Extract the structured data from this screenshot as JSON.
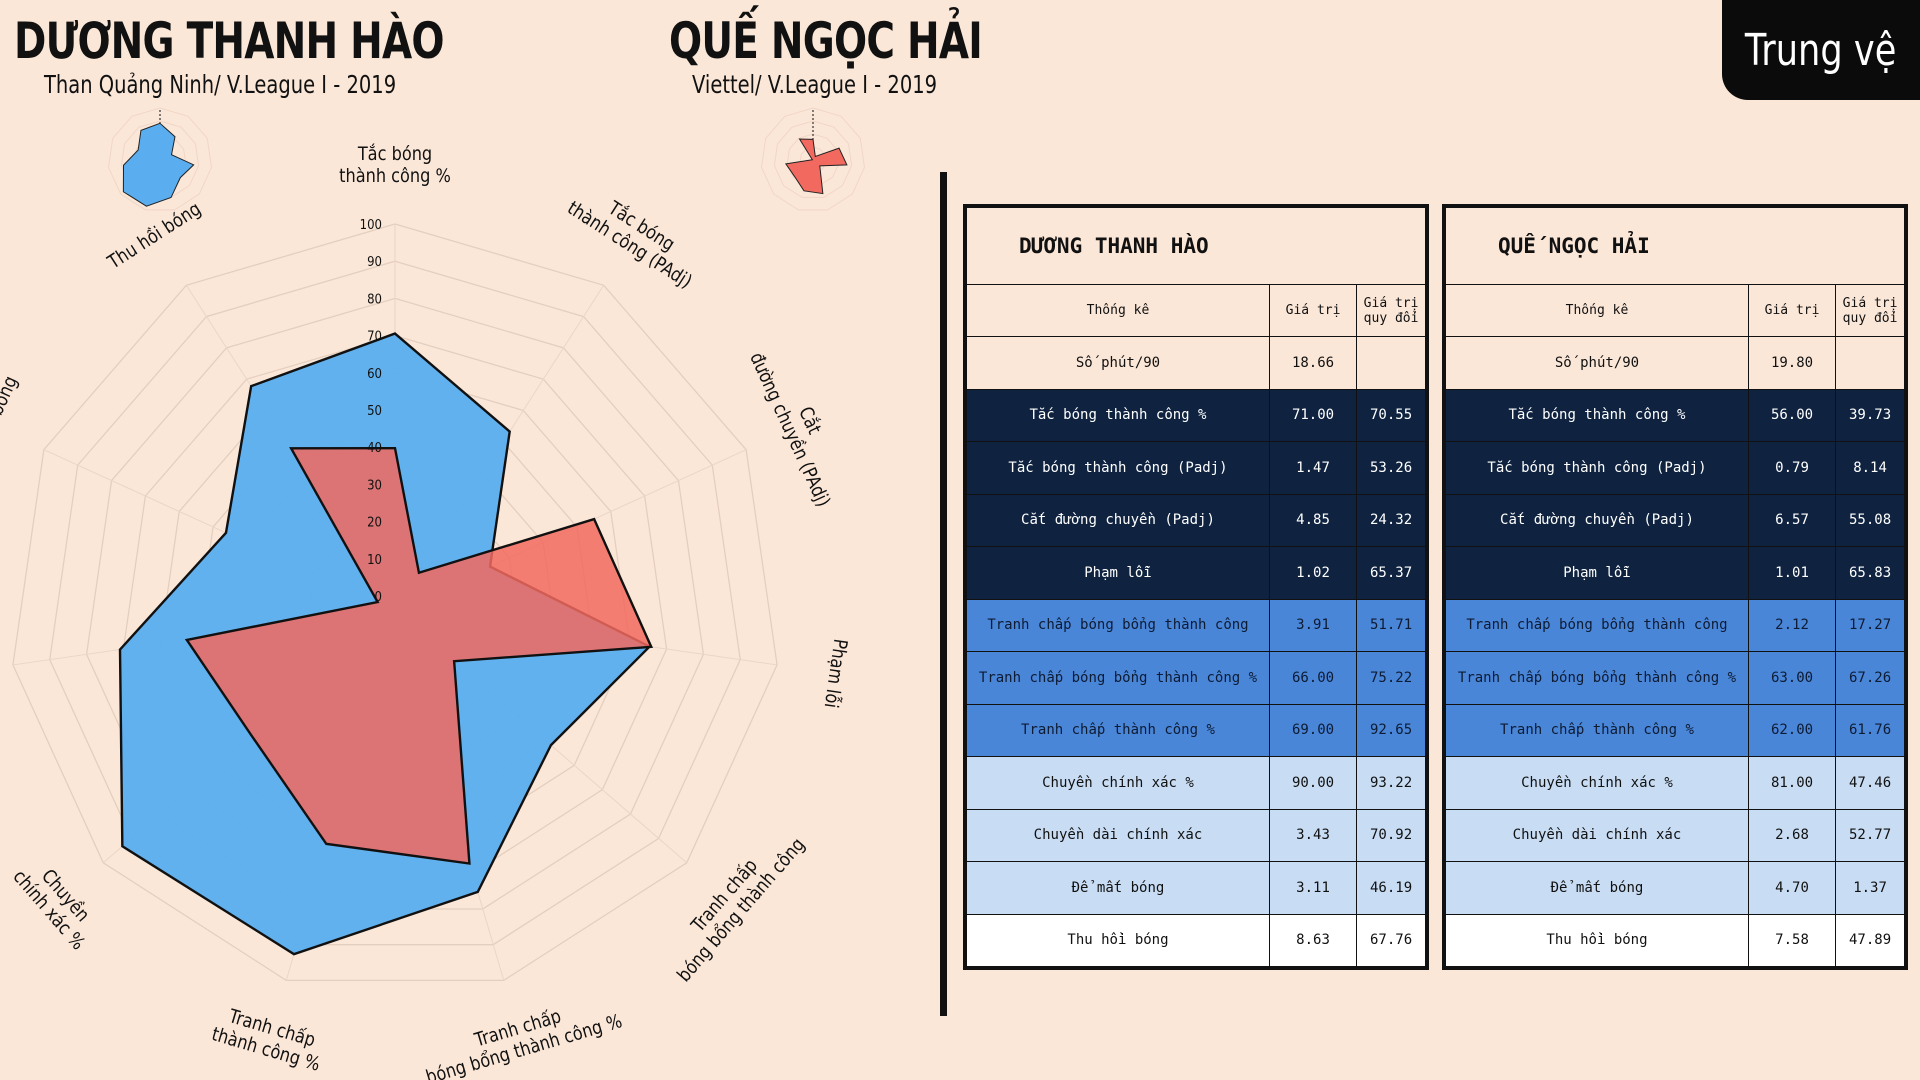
{
  "header": {
    "player1": "DƯƠNG THANH HÀO",
    "player1_sub": "Than Quảng Ninh/ V.League I - 2019",
    "player2": "QUẾ NGỌC HẢI",
    "player2_sub": "Viettel/ V.League I - 2019",
    "position_badge": "Trung vệ"
  },
  "chart_data": {
    "type": "radar",
    "categories": [
      "Tắc bóng thành công %",
      "Tắc bóng thành công (PAdj)",
      "Cắt đường chuyền (PAdj)",
      "Phạm lỗi",
      "Tranh chấp bóng bổng thành công",
      "Tranh chấp bóng bổng thành công %",
      "Tranh chấp thành công %",
      "Chuyền chính xác %",
      "Chuyền dài chính xác",
      "Để mất bóng",
      "Thu hồi bóng"
    ],
    "label_lines": [
      [
        "Tắc bóng",
        "thành công %"
      ],
      [
        "Tắc bóng",
        "thành công (PAdj)"
      ],
      [
        "Cắt",
        "đường chuyền (PAdj)"
      ],
      [
        "Phạm lỗi"
      ],
      [
        "Tranh chấp",
        "bóng bổng thành công"
      ],
      [
        "Tranh chấp",
        "bóng bổng thành công %"
      ],
      [
        "Tranh chấp",
        "thành công %"
      ],
      [
        "Chuyền",
        "chính xác %"
      ],
      [
        "Chuyền dài",
        "chính xác"
      ],
      [
        "Để mất bóng"
      ],
      [
        "Thu hồi bóng"
      ]
    ],
    "ticks": [
      0,
      10,
      20,
      30,
      40,
      50,
      60,
      70,
      80,
      90,
      100
    ],
    "ylim": [
      0,
      100
    ],
    "series": [
      {
        "name": "DƯƠNG THANH HÀO",
        "color": "#5aaef0",
        "values": [
          70.55,
          53.26,
          24.32,
          65.37,
          51.71,
          75.22,
          92.65,
          93.22,
          70.92,
          46.19,
          67.76
        ]
      },
      {
        "name": "QUẾ NGỌC HẢI",
        "color": "#f26a5f",
        "values": [
          39.73,
          8.14,
          55.08,
          65.83,
          17.27,
          67.26,
          61.76,
          47.46,
          52.77,
          1.37,
          47.89
        ]
      }
    ]
  },
  "tables": [
    {
      "name": "DƯƠNG THANH HÀO",
      "col_stat": "Thống kê",
      "col_value": "Giá trị",
      "col_adj": "Giá trị quy đổi",
      "rows": [
        {
          "stat": "Số phút/90",
          "value": "18.66",
          "adj": "",
          "style": "plain"
        },
        {
          "stat": "Tắc bóng thành công %",
          "value": "71.00",
          "adj": "70.55",
          "style": "dark"
        },
        {
          "stat": "Tắc bóng thành công (Padj)",
          "value": "1.47",
          "adj": "53.26",
          "style": "dark"
        },
        {
          "stat": "Cắt đường chuyền (Padj)",
          "value": "4.85",
          "adj": "24.32",
          "style": "dark"
        },
        {
          "stat": "Phạm lỗi",
          "value": "1.02",
          "adj": "65.37",
          "style": "dark"
        },
        {
          "stat": "Tranh chấp bóng bổng thành công",
          "value": "3.91",
          "adj": "51.71",
          "style": "mid"
        },
        {
          "stat": "Tranh chấp bóng bổng thành công %",
          "value": "66.00",
          "adj": "75.22",
          "style": "mid"
        },
        {
          "stat": "Tranh chấp thành công %",
          "value": "69.00",
          "adj": "92.65",
          "style": "mid"
        },
        {
          "stat": "Chuyền chính xác %",
          "value": "90.00",
          "adj": "93.22",
          "style": "light"
        },
        {
          "stat": "Chuyền dài chính xác",
          "value": "3.43",
          "adj": "70.92",
          "style": "light"
        },
        {
          "stat": "Để mất bóng",
          "value": "3.11",
          "adj": "46.19",
          "style": "light"
        },
        {
          "stat": "Thu hồi bóng",
          "value": "8.63",
          "adj": "67.76",
          "style": "white"
        }
      ]
    },
    {
      "name": "QUẾ NGỌC HẢI",
      "col_stat": "Thống kê",
      "col_value": "Giá trị",
      "col_adj": "Giá trị quy đổi",
      "rows": [
        {
          "stat": "Số phút/90",
          "value": "19.80",
          "adj": "",
          "style": "plain"
        },
        {
          "stat": "Tắc bóng thành công %",
          "value": "56.00",
          "adj": "39.73",
          "style": "dark"
        },
        {
          "stat": "Tắc bóng thành công (Padj)",
          "value": "0.79",
          "adj": "8.14",
          "style": "dark"
        },
        {
          "stat": "Cắt đường chuyền (Padj)",
          "value": "6.57",
          "adj": "55.08",
          "style": "dark"
        },
        {
          "stat": "Phạm lỗi",
          "value": "1.01",
          "adj": "65.83",
          "style": "dark"
        },
        {
          "stat": "Tranh chấp bóng bổng thành công",
          "value": "2.12",
          "adj": "17.27",
          "style": "mid"
        },
        {
          "stat": "Tranh chấp bóng bổng thành công %",
          "value": "63.00",
          "adj": "67.26",
          "style": "mid"
        },
        {
          "stat": "Tranh chấp thành công %",
          "value": "62.00",
          "adj": "61.76",
          "style": "mid"
        },
        {
          "stat": "Chuyền chính xác %",
          "value": "81.00",
          "adj": "47.46",
          "style": "light"
        },
        {
          "stat": "Chuyền dài chính xác",
          "value": "2.68",
          "adj": "52.77",
          "style": "light"
        },
        {
          "stat": "Để mất bóng",
          "value": "4.70",
          "adj": "1.37",
          "style": "light"
        },
        {
          "stat": "Thu hồi bóng",
          "value": "7.58",
          "adj": "47.89",
          "style": "white"
        }
      ]
    }
  ]
}
